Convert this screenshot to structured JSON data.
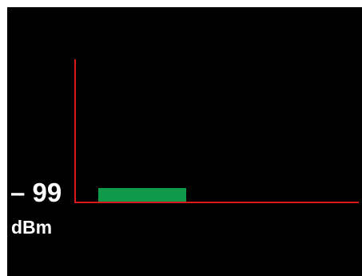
{
  "meter": {
    "value": "– 99",
    "unit": "dBm",
    "colors": {
      "background": "#000000",
      "axis": "#d81818",
      "bar": "#0e9a48",
      "text": "#ffffff"
    }
  }
}
